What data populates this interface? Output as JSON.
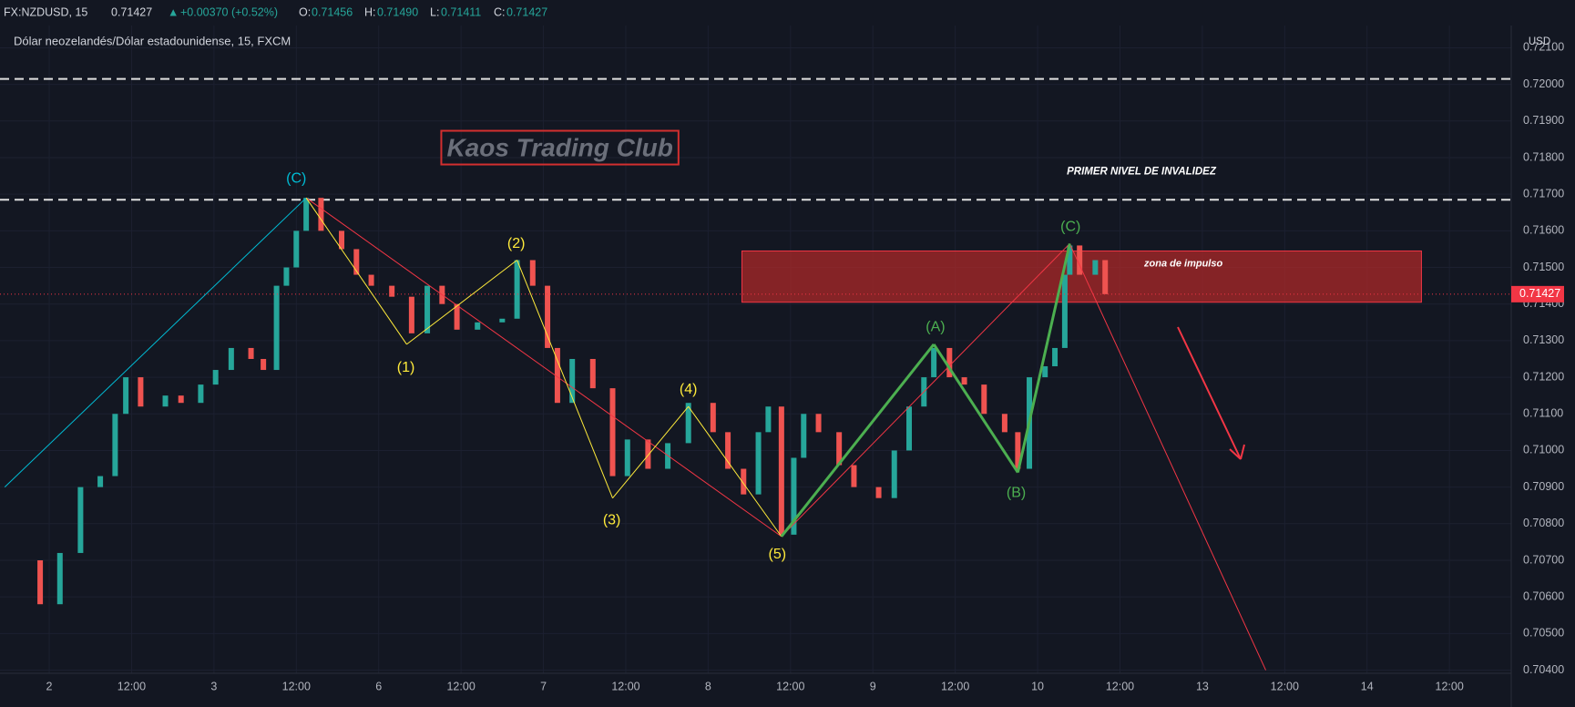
{
  "header": {
    "symbol": "FX:NZDUSD, 15",
    "last": "0.71427",
    "arrow": "▲",
    "change": "+0.00370 (+0.52%)",
    "open_label": "O:",
    "open": "0.71456",
    "high_label": "H:",
    "high": "0.71490",
    "low_label": "L:",
    "low": "0.71411",
    "close_label": "C:",
    "close": "0.71427"
  },
  "legend": "Dólar neozelandés/Dólar estadounidense, 15, FXCM",
  "price_axis": {
    "currency": "USD",
    "ticks": [
      {
        "value": 0.721,
        "label": "0.72100"
      },
      {
        "value": 0.72,
        "label": "0.72000"
      },
      {
        "value": 0.719,
        "label": "0.71900"
      },
      {
        "value": 0.718,
        "label": "0.71800"
      },
      {
        "value": 0.717,
        "label": "0.71700"
      },
      {
        "value": 0.716,
        "label": "0.71600"
      },
      {
        "value": 0.715,
        "label": "0.71500"
      },
      {
        "value": 0.714,
        "label": "0.71400"
      },
      {
        "value": 0.713,
        "label": "0.71300"
      },
      {
        "value": 0.712,
        "label": "0.71200"
      },
      {
        "value": 0.711,
        "label": "0.71100"
      },
      {
        "value": 0.71,
        "label": "0.71000"
      },
      {
        "value": 0.709,
        "label": "0.70900"
      },
      {
        "value": 0.708,
        "label": "0.70800"
      },
      {
        "value": 0.707,
        "label": "0.70700"
      },
      {
        "value": 0.706,
        "label": "0.70600"
      },
      {
        "value": 0.705,
        "label": "0.70500"
      },
      {
        "value": 0.704,
        "label": "0.70400"
      }
    ],
    "last_price": {
      "value": 0.71427,
      "label": "0.71427"
    }
  },
  "time_axis": {
    "labels": [
      "2",
      "12:00",
      "3",
      "12:00",
      "6",
      "12:00",
      "7",
      "12:00",
      "8",
      "12:00",
      "9",
      "12:00",
      "10",
      "12:00",
      "13",
      "12:00",
      "14",
      "12:00"
    ]
  },
  "price_path": {
    "t": [
      -0.54,
      -0.11,
      0.13,
      0.38,
      0.62,
      0.8,
      0.93,
      1.11,
      1.41,
      1.6,
      1.84,
      2.02,
      2.21,
      2.45,
      2.6,
      2.76,
      2.88,
      3.0,
      3.12,
      3.3,
      3.55,
      3.73,
      3.91,
      4.16,
      4.4,
      4.59,
      4.77,
      4.95,
      5.2,
      5.5,
      5.68,
      5.87,
      6.05,
      6.17,
      6.35,
      6.6,
      6.84,
      7.02,
      7.27,
      7.51,
      7.76,
      8.06,
      8.24,
      8.43,
      8.61,
      8.73,
      8.89,
      9.04,
      9.16,
      9.34,
      9.59,
      9.77,
      10.07,
      10.26,
      10.44,
      10.62,
      10.74,
      10.93,
      11.11,
      11.35,
      11.6,
      11.76,
      11.9,
      12.09,
      12.21,
      12.33,
      12.39,
      12.51,
      12.7,
      12.82
    ],
    "price": [
      0.707,
      0.7058,
      0.7072,
      0.709,
      0.7093,
      0.711,
      0.712,
      0.7112,
      0.7115,
      0.7113,
      0.7118,
      0.7122,
      0.7128,
      0.7125,
      0.7122,
      0.7145,
      0.715,
      0.716,
      0.7169,
      0.716,
      0.7155,
      0.7148,
      0.7145,
      0.7142,
      0.7132,
      0.7145,
      0.714,
      0.7133,
      0.7135,
      0.7136,
      0.7152,
      0.7145,
      0.7128,
      0.7113,
      0.7125,
      0.7117,
      0.7093,
      0.7103,
      0.7095,
      0.7102,
      0.7113,
      0.7105,
      0.7095,
      0.7088,
      0.7105,
      0.7112,
      0.7077,
      0.7098,
      0.711,
      0.7105,
      0.7096,
      0.709,
      0.7087,
      0.71,
      0.7112,
      0.712,
      0.7128,
      0.712,
      0.7118,
      0.711,
      0.7105,
      0.7095,
      0.712,
      0.7123,
      0.7128,
      0.7148,
      0.7156,
      0.7148,
      0.7152,
      0.71427
    ],
    "up_color": "#26a69a",
    "down_color": "#ef5350"
  },
  "levels": [
    0.72015,
    0.71685
  ],
  "zone": {
    "label": "zona de impulso",
    "t": [
      8.41,
      16.66
    ],
    "price": [
      0.71405,
      0.71545
    ],
    "label_t": 13.77,
    "label_price": 0.7151
  },
  "watermark": {
    "text": "Kaos Trading Club",
    "t": 6.2,
    "price": 0.71822
  },
  "note": {
    "text": "PRIMER NIVEL DE INVALIDEZ",
    "t": 13.26,
    "price": 0.71761
  },
  "lines": [
    {
      "color": "#00bcd4",
      "width": 1,
      "t": [
        -0.54,
        3.12
      ],
      "price": [
        0.709,
        0.7169
      ]
    },
    {
      "color": "#f23645",
      "width": 1,
      "t": [
        3.12,
        8.89,
        12.39,
        14.77
      ],
      "price": [
        0.7169,
        0.70765,
        0.71565,
        0.704
      ]
    },
    {
      "color": "#ffeb3b",
      "width": 1,
      "t": [
        3.12,
        4.34,
        5.68,
        6.84,
        7.76,
        8.89
      ],
      "price": [
        0.7169,
        0.7129,
        0.7152,
        0.7087,
        0.7112,
        0.70765
      ]
    },
    {
      "color": "#4caf50",
      "width": 3,
      "t": [
        8.89,
        10.74,
        11.76,
        12.39
      ],
      "price": [
        0.70765,
        0.7129,
        0.7094,
        0.71565
      ]
    }
  ],
  "wave_labels": [
    {
      "text": "(C)",
      "color": "#00bcd4",
      "t": 3.0,
      "price": 0.71742
    },
    {
      "text": "(1)",
      "color": "#ffeb3b",
      "t": 4.33,
      "price": 0.71226
    },
    {
      "text": "(2)",
      "color": "#ffeb3b",
      "t": 5.67,
      "price": 0.71564
    },
    {
      "text": "(3)",
      "color": "#ffeb3b",
      "t": 6.83,
      "price": 0.70809
    },
    {
      "text": "(4)",
      "color": "#ffeb3b",
      "t": 7.76,
      "price": 0.71166
    },
    {
      "text": "(5)",
      "color": "#ffeb3b",
      "t": 8.84,
      "price": 0.70716
    },
    {
      "text": "(A)",
      "color": "#4caf50",
      "t": 10.76,
      "price": 0.71336
    },
    {
      "text": "(B)",
      "color": "#4caf50",
      "t": 11.74,
      "price": 0.70883
    },
    {
      "text": "(C)",
      "color": "#4caf50",
      "t": 12.4,
      "price": 0.7161
    }
  ]
}
